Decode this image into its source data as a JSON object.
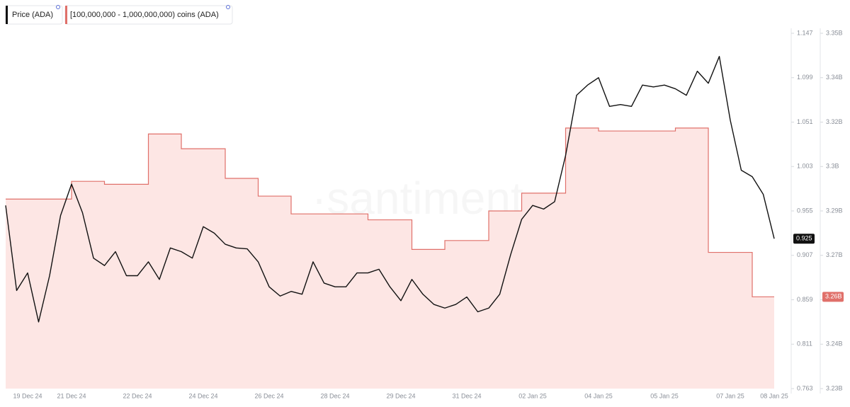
{
  "chart_data": {
    "type": "line",
    "watermark": "·santiment·",
    "categories": [
      null,
      null,
      "19 Dec 24",
      null,
      null,
      null,
      "21 Dec 24",
      null,
      null,
      null,
      null,
      null,
      "22 Dec 24",
      null,
      null,
      null,
      null,
      null,
      "24 Dec 24",
      null,
      null,
      null,
      null,
      null,
      "26 Dec 24",
      null,
      null,
      null,
      null,
      null,
      "28 Dec 24",
      null,
      null,
      null,
      null,
      null,
      "29 Dec 24",
      null,
      null,
      null,
      null,
      null,
      "31 Dec 24",
      null,
      null,
      null,
      null,
      null,
      "02 Jan 25",
      null,
      null,
      null,
      null,
      null,
      "04 Jan 25",
      null,
      null,
      null,
      null,
      null,
      "05 Jan 25",
      null,
      null,
      null,
      null,
      null,
      "07 Jan 25",
      null,
      null,
      null,
      "08 Jan 25"
    ],
    "series": [
      {
        "name": "Price (ADA)",
        "color": "#111111",
        "values": [
          0.961,
          0.869,
          0.888,
          0.835,
          0.885,
          0.95,
          0.984,
          0.953,
          0.904,
          0.896,
          0.911,
          0.885,
          0.885,
          0.9,
          0.881,
          0.915,
          0.911,
          0.904,
          0.938,
          0.931,
          0.919,
          0.915,
          0.914,
          0.9,
          0.873,
          0.863,
          0.868,
          0.865,
          0.9,
          0.877,
          0.873,
          0.873,
          0.888,
          0.888,
          0.892,
          0.873,
          0.858,
          0.881,
          0.865,
          0.854,
          0.85,
          0.854,
          0.862,
          0.846,
          0.85,
          0.865,
          0.908,
          0.946,
          0.961,
          0.957,
          0.965,
          1.015,
          1.08,
          1.091,
          1.099,
          1.068,
          1.07,
          1.068,
          1.091,
          1.089,
          1.091,
          1.087,
          1.08,
          1.106,
          1.093,
          1.122,
          1.053,
          0.999,
          0.992,
          0.973,
          0.925
        ]
      },
      {
        "name": "[100,000,000 - 1,000,000,000) coins (ADA)",
        "color": "#e0706a",
        "fill": "#fde6e4",
        "axis": "y2",
        "step": true,
        "end_label": "3.26B",
        "values": [
          3.294,
          3.294,
          3.294,
          3.294,
          3.294,
          3.294,
          3.3,
          3.3,
          3.3,
          3.299,
          3.299,
          3.299,
          3.299,
          3.316,
          3.316,
          3.316,
          3.311,
          3.311,
          3.311,
          3.311,
          3.301,
          3.301,
          3.301,
          3.295,
          3.295,
          3.295,
          3.289,
          3.289,
          3.289,
          3.289,
          3.289,
          3.289,
          3.289,
          3.287,
          3.287,
          3.287,
          3.287,
          3.277,
          3.277,
          3.277,
          3.28,
          3.28,
          3.28,
          3.28,
          3.29,
          3.29,
          3.29,
          3.296,
          3.296,
          3.296,
          3.296,
          3.318,
          3.318,
          3.318,
          3.317,
          3.317,
          3.317,
          3.317,
          3.317,
          3.317,
          3.317,
          3.318,
          3.318,
          3.318,
          3.276,
          3.276,
          3.276,
          3.276,
          3.261,
          3.261,
          3.261
        ]
      }
    ],
    "ylim": [
      0.763,
      1.147
    ],
    "yticks": [
      0.763,
      0.811,
      0.859,
      0.907,
      0.955,
      1.003,
      1.051,
      1.099,
      1.147
    ],
    "y2lim": [
      3.23,
      3.35
    ],
    "y2ticks": [
      {
        "value": 3.23,
        "label": "3.23B"
      },
      {
        "value": 3.245,
        "label": "3.24B"
      },
      {
        "value": 3.26,
        "label": "3.26B"
      },
      {
        "value": 3.275,
        "label": "3.27B"
      },
      {
        "value": 3.29,
        "label": "3.29B"
      },
      {
        "value": 3.305,
        "label": "3.3B"
      },
      {
        "value": 3.32,
        "label": "3.32B"
      },
      {
        "value": 3.335,
        "label": "3.34B"
      },
      {
        "value": 3.35,
        "label": "3.35B"
      }
    ],
    "grid": false
  }
}
